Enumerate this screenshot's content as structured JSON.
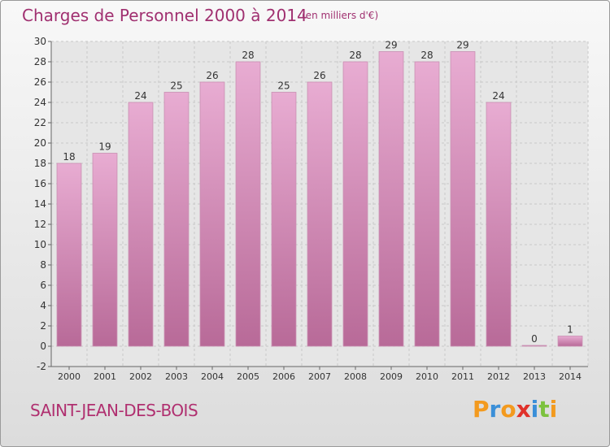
{
  "header": {
    "title": "Charges de Personnel 2000 à 2014",
    "subtitle": "(en milliers d'€)"
  },
  "footer": {
    "place": "SAINT-JEAN-DES-BOIS",
    "logo": "Proxiti",
    "logo_colors": [
      "#f39a1e",
      "#3a8fd8",
      "#f39a1e",
      "#e0312a",
      "#3a8fd8",
      "#7cc23e",
      "#f39a1e"
    ]
  },
  "colors": {
    "bar_top": "#e8acd2",
    "bar_bottom": "#b86a98",
    "grid": "#c8c8c8",
    "plot_bg": "#e6e6e6",
    "axis_text": "#333333"
  },
  "chart_data": {
    "type": "bar",
    "categories": [
      "2000",
      "2001",
      "2002",
      "2003",
      "2004",
      "2005",
      "2006",
      "2007",
      "2008",
      "2009",
      "2010",
      "2011",
      "2012",
      "2013",
      "2014"
    ],
    "values": [
      18,
      19,
      24,
      25,
      26,
      28,
      25,
      26,
      28,
      29,
      28,
      29,
      24,
      0,
      1
    ],
    "ylim": [
      -2,
      30
    ],
    "yticks": [
      -2,
      0,
      2,
      4,
      6,
      8,
      10,
      12,
      14,
      16,
      18,
      20,
      22,
      24,
      26,
      28,
      30
    ],
    "grid": true
  }
}
